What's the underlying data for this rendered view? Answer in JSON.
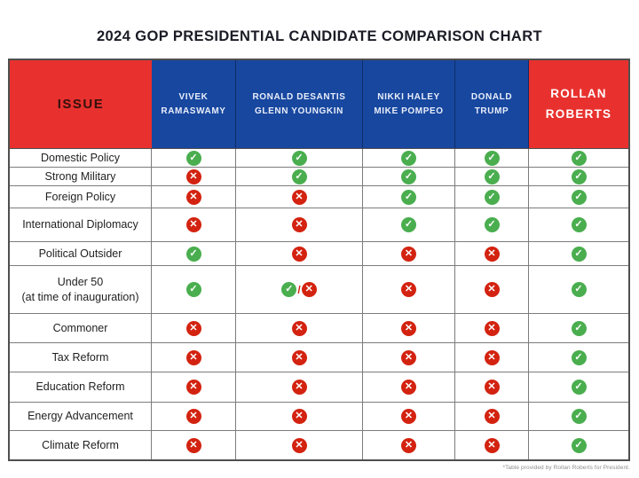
{
  "title": "2024 GOP PRESIDENTIAL CANDIDATE COMPARISON CHART",
  "footnote": "*Table provided by Rollan Roberts for President.",
  "colors": {
    "header_red": "#e8312e",
    "header_blue": "#17479f",
    "check_green": "#4aae4f",
    "cross_red": "#d32310",
    "issue_header_text": "#35100c",
    "grid_line": "#7c7c7c"
  },
  "icons": {
    "check": "check-icon",
    "x": "cross-icon"
  },
  "chart_data": {
    "type": "table",
    "title": "2024 GOP PRESIDENTIAL CANDIDATE COMPARISON CHART",
    "issue_header": "ISSUE",
    "candidates": [
      {
        "name": "Vivek Ramaswamy",
        "lines": [
          "VIVEK",
          "RAMASWAMY"
        ],
        "header_color": "blue"
      },
      {
        "name": "Ronald DeSantis / Glenn Youngkin",
        "lines": [
          "RONALD DESANTIS",
          "GLENN YOUNGKIN"
        ],
        "header_color": "blue"
      },
      {
        "name": "Nikki Haley / Mike Pompeo",
        "lines": [
          "NIKKI HALEY",
          "MIKE POMPEO"
        ],
        "header_color": "blue"
      },
      {
        "name": "Donald Trump",
        "lines": [
          "DONALD",
          "TRUMP"
        ],
        "header_color": "blue"
      },
      {
        "name": "Rollan Roberts",
        "lines": [
          "ROLLAN",
          "ROBERTS"
        ],
        "header_color": "red"
      }
    ],
    "rows": [
      {
        "issue": "Domestic Policy",
        "lines": [
          "Domestic Policy"
        ],
        "marks": [
          "check",
          "check",
          "check",
          "check",
          "check"
        ]
      },
      {
        "issue": "Strong Military",
        "lines": [
          "Strong Military"
        ],
        "marks": [
          "x",
          "check",
          "check",
          "check",
          "check"
        ]
      },
      {
        "issue": "Foreign Policy",
        "lines": [
          "Foreign Policy"
        ],
        "marks": [
          "x",
          "x",
          "check",
          "check",
          "check"
        ]
      },
      {
        "issue": "International Diplomacy",
        "lines": [
          "International Diplomacy"
        ],
        "marks": [
          "x",
          "x",
          "check",
          "check",
          "check"
        ]
      },
      {
        "issue": "Political Outsider",
        "lines": [
          "Political Outsider"
        ],
        "marks": [
          "check",
          "x",
          "x",
          "x",
          "check"
        ]
      },
      {
        "issue": "Under 50 (at time of inauguration)",
        "lines": [
          "Under 50",
          "(at time of inauguration)"
        ],
        "marks": [
          "check",
          "check-x",
          "x",
          "x",
          "check"
        ]
      },
      {
        "issue": "Commoner",
        "lines": [
          "Commoner"
        ],
        "marks": [
          "x",
          "x",
          "x",
          "x",
          "check"
        ]
      },
      {
        "issue": "Tax Reform",
        "lines": [
          "Tax Reform"
        ],
        "marks": [
          "x",
          "x",
          "x",
          "x",
          "check"
        ]
      },
      {
        "issue": "Education Reform",
        "lines": [
          "Education Reform"
        ],
        "marks": [
          "x",
          "x",
          "x",
          "x",
          "check"
        ]
      },
      {
        "issue": "Energy Advancement",
        "lines": [
          "Energy Advancement"
        ],
        "marks": [
          "x",
          "x",
          "x",
          "x",
          "check"
        ]
      },
      {
        "issue": "Climate Reform",
        "lines": [
          "Climate Reform"
        ],
        "marks": [
          "x",
          "x",
          "x",
          "x",
          "check"
        ]
      }
    ]
  }
}
